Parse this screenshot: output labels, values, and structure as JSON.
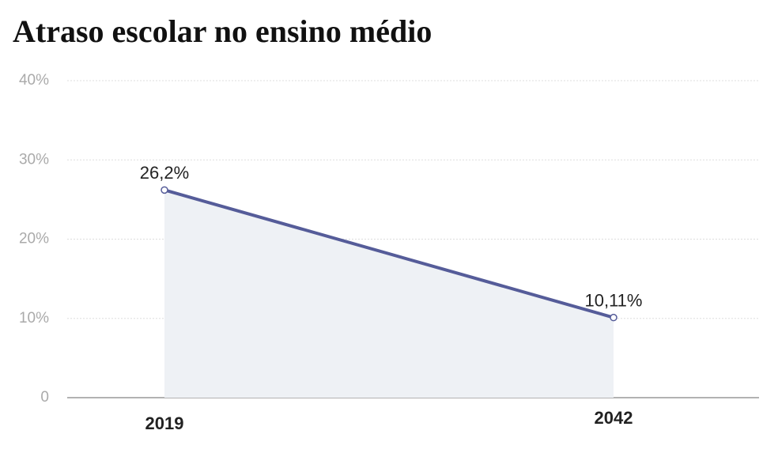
{
  "chart_data": {
    "type": "line",
    "title": "Atraso escolar no ensino médio",
    "categories": [
      "2019",
      "2042"
    ],
    "series": [
      {
        "name": "Atraso escolar",
        "color": "#555c99",
        "values": [
          26.2,
          10.11
        ],
        "value_labels": [
          "26,2%",
          "10,11%"
        ]
      }
    ],
    "area_color": "#eef1f5",
    "ylim": [
      0,
      40
    ],
    "yticks": [
      0,
      {
        "value": 10,
        "label": "10%"
      },
      {
        "value": 20,
        "label": "20%"
      },
      {
        "value": 30,
        "label": "30%"
      },
      {
        "value": 40,
        "label": "40%"
      }
    ],
    "grid": true
  }
}
